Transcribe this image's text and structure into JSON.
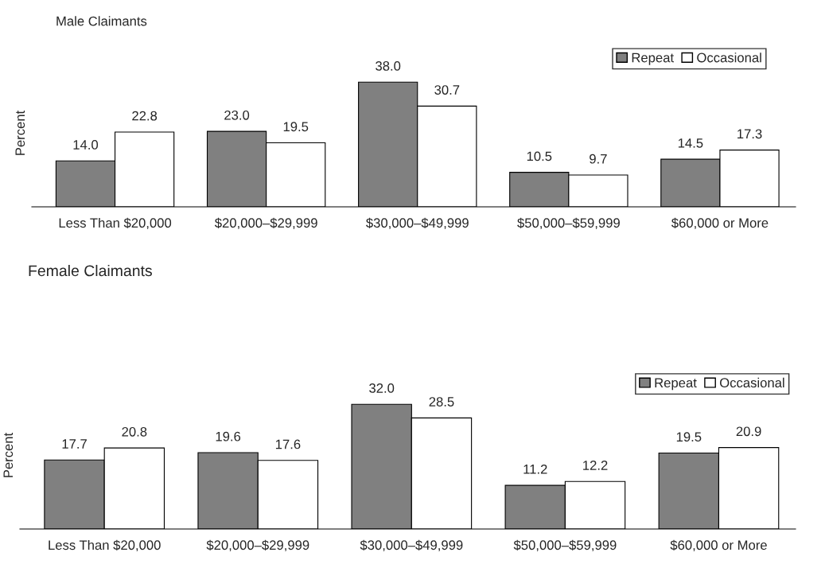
{
  "chart_data": [
    {
      "type": "bar",
      "title": "Male Claimants",
      "ylabel": "Percent",
      "categories": [
        "Less Than $20,000",
        "$20,000–$29,999",
        "$30,000–$49,999",
        "$50,000–$59,999",
        "$60,000 or More"
      ],
      "series": [
        {
          "name": "Repeat",
          "color": "#808080",
          "values": [
            14.0,
            23.0,
            38.0,
            10.5,
            14.5
          ],
          "value_labels": [
            "14.0",
            "23.0",
            "38.0",
            "10.5",
            "14.5"
          ]
        },
        {
          "name": "Occasional",
          "color": "#ffffff",
          "values": [
            22.8,
            19.5,
            30.7,
            9.7,
            17.3
          ],
          "value_labels": [
            "22.8",
            "19.5",
            "30.7",
            "9.7",
            "17.3"
          ]
        }
      ],
      "legend": "top right",
      "grid": false
    },
    {
      "type": "bar",
      "title": "Female Claimants",
      "ylabel": "Percent",
      "categories": [
        "Less Than $20,000",
        "$20,000–$29,999",
        "$30,000–$49,999",
        "$50,000–$59,999",
        "$60,000 or More"
      ],
      "series": [
        {
          "name": "Repeat",
          "color": "#808080",
          "values": [
            17.7,
            19.6,
            32.0,
            11.2,
            19.5
          ],
          "value_labels": [
            "17.7",
            "19.6",
            "32.0",
            "11.2",
            "19.5"
          ]
        },
        {
          "name": "Occasional",
          "color": "#ffffff",
          "values": [
            20.8,
            17.6,
            28.5,
            12.2,
            20.9
          ],
          "value_labels": [
            "20.8",
            "17.6",
            "28.5",
            "12.2",
            "20.9"
          ]
        }
      ],
      "legend": "top right",
      "grid": false
    }
  ]
}
